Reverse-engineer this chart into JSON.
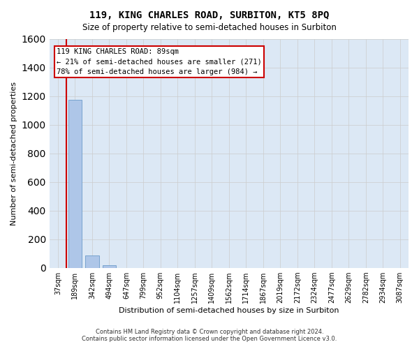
{
  "title": "119, KING CHARLES ROAD, SURBITON, KT5 8PQ",
  "subtitle": "Size of property relative to semi-detached houses in Surbiton",
  "xlabel": "Distribution of semi-detached houses by size in Surbiton",
  "ylabel": "Number of semi-detached properties",
  "categories": [
    "37sqm",
    "189sqm",
    "342sqm",
    "494sqm",
    "647sqm",
    "799sqm",
    "952sqm",
    "1104sqm",
    "1257sqm",
    "1409sqm",
    "1562sqm",
    "1714sqm",
    "1867sqm",
    "2019sqm",
    "2172sqm",
    "2324sqm",
    "2477sqm",
    "2629sqm",
    "2782sqm",
    "2934sqm",
    "3087sqm"
  ],
  "values": [
    0,
    1175,
    88,
    20,
    0,
    0,
    0,
    0,
    0,
    0,
    0,
    0,
    0,
    0,
    0,
    0,
    0,
    0,
    0,
    0,
    0
  ],
  "bar_color": "#aec6e8",
  "bar_edge_color": "#5a8fc2",
  "highlight_bar_index": 1,
  "highlight_color": "#aec6e8",
  "property_line_x": 0.5,
  "property_size": 89,
  "percent_smaller": 21,
  "count_smaller": 271,
  "percent_larger": 78,
  "count_larger": 984,
  "annotation_text_line1": "119 KING CHARLES ROAD: 89sqm",
  "annotation_text_line2": "← 21% of semi-detached houses are smaller (271)",
  "annotation_text_line3": "78% of semi-detached houses are larger (984) →",
  "annotation_box_color": "#ffffff",
  "annotation_box_edge_color": "#cc0000",
  "property_line_color": "#cc0000",
  "ylim": [
    0,
    1600
  ],
  "yticks": [
    0,
    200,
    400,
    600,
    800,
    1000,
    1200,
    1400,
    1600
  ],
  "grid_color": "#cccccc",
  "bg_color": "#dce8f5",
  "footer_line1": "Contains HM Land Registry data © Crown copyright and database right 2024.",
  "footer_line2": "Contains public sector information licensed under the Open Government Licence v3.0."
}
